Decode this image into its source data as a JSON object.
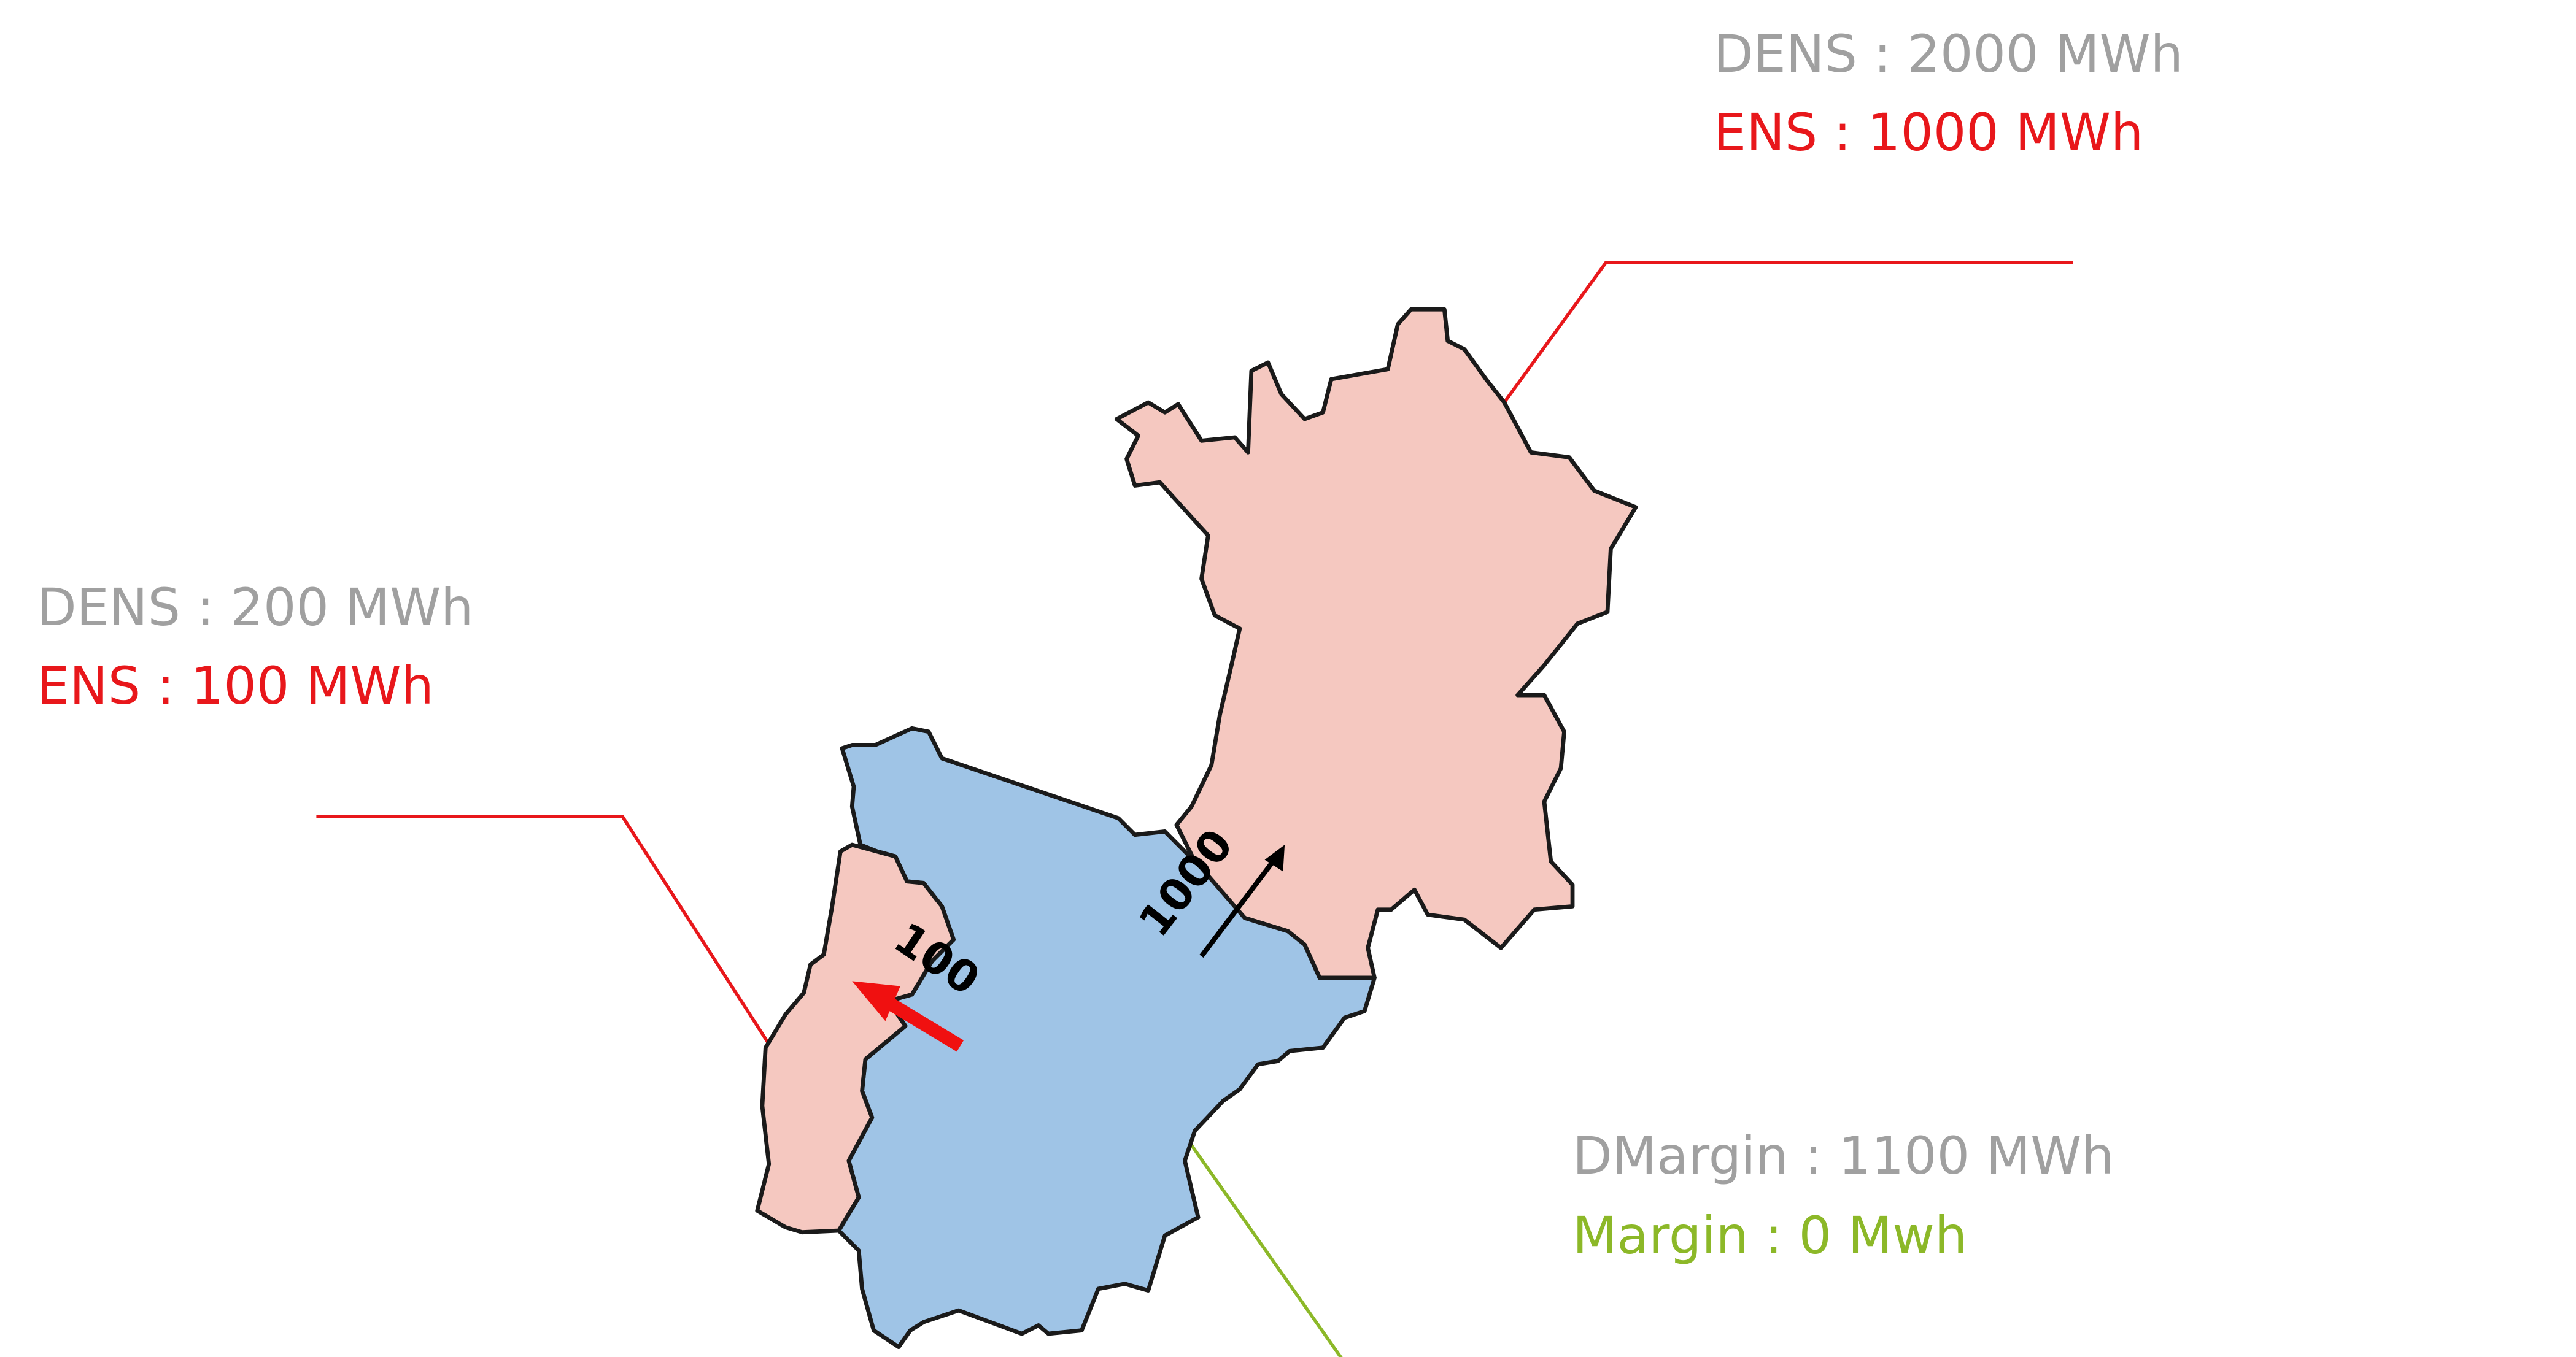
{
  "colors": {
    "deficit_fill": "#f5c8c0",
    "surplus_fill": "#9fc4e6",
    "border": "#1a1a1a",
    "dens_text": "#a0a0a0",
    "ens_text": "#e8171b",
    "margin_text": "#8cb828",
    "leader_red": "#e8171b",
    "leader_green": "#8cb828",
    "flow_red": "#f01010",
    "flow_black": "#000000"
  },
  "labels": {
    "france": {
      "dens": "DENS : 2000 MWh",
      "ens": "ENS : 1000 MWh"
    },
    "portugal": {
      "dens": "DENS : 200 MWh",
      "ens": "ENS : 100 MWh"
    },
    "spain": {
      "dmargin": "DMargin : 1100 MWh",
      "margin": "Margin : 0 Mwh"
    }
  },
  "flows": {
    "spain_to_portugal": "100",
    "spain_to_france": "1000"
  }
}
